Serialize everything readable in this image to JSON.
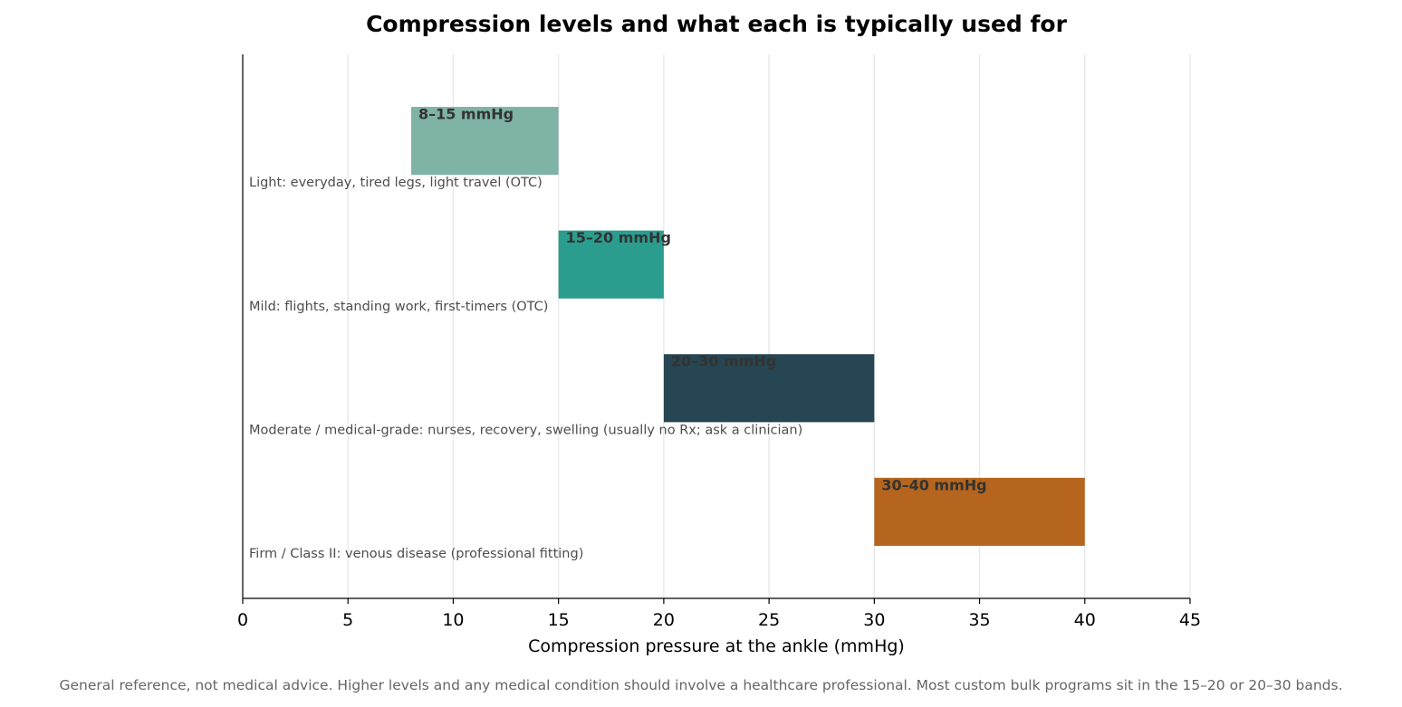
{
  "chart_data": {
    "type": "bar",
    "orientation": "horizontal-range",
    "title": "Compression levels and what each is typically used for",
    "xlabel": "Compression pressure at the ankle (mmHg)",
    "ylabel": "",
    "xlim": [
      0,
      45
    ],
    "xticks": [
      0,
      5,
      10,
      15,
      20,
      25,
      30,
      35,
      40,
      45
    ],
    "grid": "vertical",
    "legend": "none",
    "bars": [
      {
        "category": "Light: everyday, tired legs, light travel  (OTC)",
        "start": 8,
        "end": 15,
        "range_label": "8–15 mmHg",
        "color": "#7fb3a5"
      },
      {
        "category": "Mild: flights, standing work, first-timers  (OTC)",
        "start": 15,
        "end": 20,
        "range_label": "15–20 mmHg",
        "color": "#2a9d8f"
      },
      {
        "category": "Moderate / medical-grade: nurses, recovery, swelling  (usually no Rx; ask a clinician)",
        "start": 20,
        "end": 30,
        "range_label": "20–30 mmHg",
        "color": "#264653"
      },
      {
        "category": "Firm / Class II: venous disease  (professional fitting)",
        "start": 30,
        "end": 40,
        "range_label": "30–40 mmHg",
        "color": "#b5651d"
      }
    ],
    "footnote": "General reference, not medical advice. Higher levels and any medical condition should involve a healthcare professional. Most custom bulk programs sit in the 15–20 or 20–30 bands."
  }
}
